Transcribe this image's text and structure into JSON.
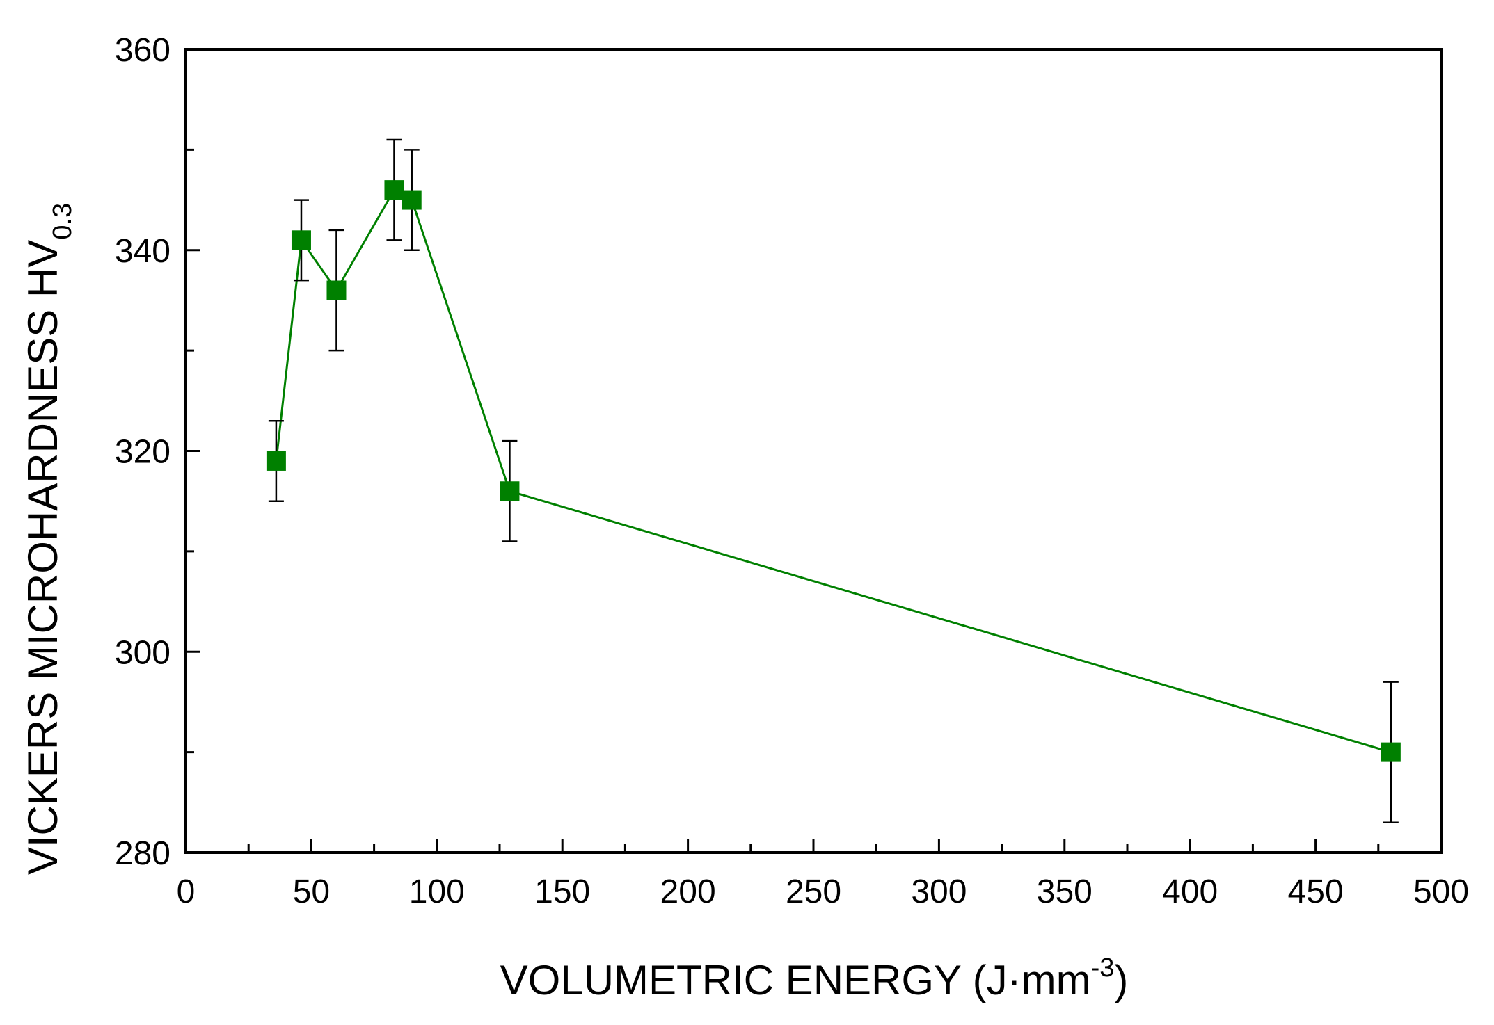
{
  "chart_data": {
    "type": "line",
    "title": "",
    "xlabel": {
      "main": "VOLUMETRIC ENERGY (J·mm",
      "sup": "-3",
      "close": ")"
    },
    "ylabel": {
      "main": "VICKERS MICROHARDNESS HV",
      "sub": "0.3"
    },
    "xlim": [
      0,
      500
    ],
    "ylim": [
      280,
      360
    ],
    "x_major_ticks": [
      0,
      50,
      100,
      150,
      200,
      250,
      300,
      350,
      400,
      450,
      500
    ],
    "x_minor_ticks": [
      25,
      75,
      125,
      175,
      225,
      275,
      325,
      375,
      425,
      475
    ],
    "y_major_ticks": [
      280,
      300,
      320,
      340,
      360
    ],
    "y_minor_ticks": [
      290,
      310,
      330,
      350
    ],
    "x_tick_labels": [
      "0",
      "50",
      "100",
      "150",
      "200",
      "250",
      "300",
      "350",
      "400",
      "450",
      "500"
    ],
    "y_tick_labels": [
      "280",
      "300",
      "320",
      "340",
      "360"
    ],
    "grid": false,
    "series": [
      {
        "name": "HV0.3",
        "color": "#008000",
        "marker": "square",
        "points": [
          {
            "x": 36,
            "y": 319,
            "err": 4
          },
          {
            "x": 46,
            "y": 341,
            "err": 4
          },
          {
            "x": 60,
            "y": 336,
            "err": 6
          },
          {
            "x": 83,
            "y": 346,
            "err": 5
          },
          {
            "x": 90,
            "y": 345,
            "err": 5
          },
          {
            "x": 129,
            "y": 316,
            "err": 5
          },
          {
            "x": 480,
            "y": 290,
            "err": 7
          }
        ]
      }
    ]
  }
}
